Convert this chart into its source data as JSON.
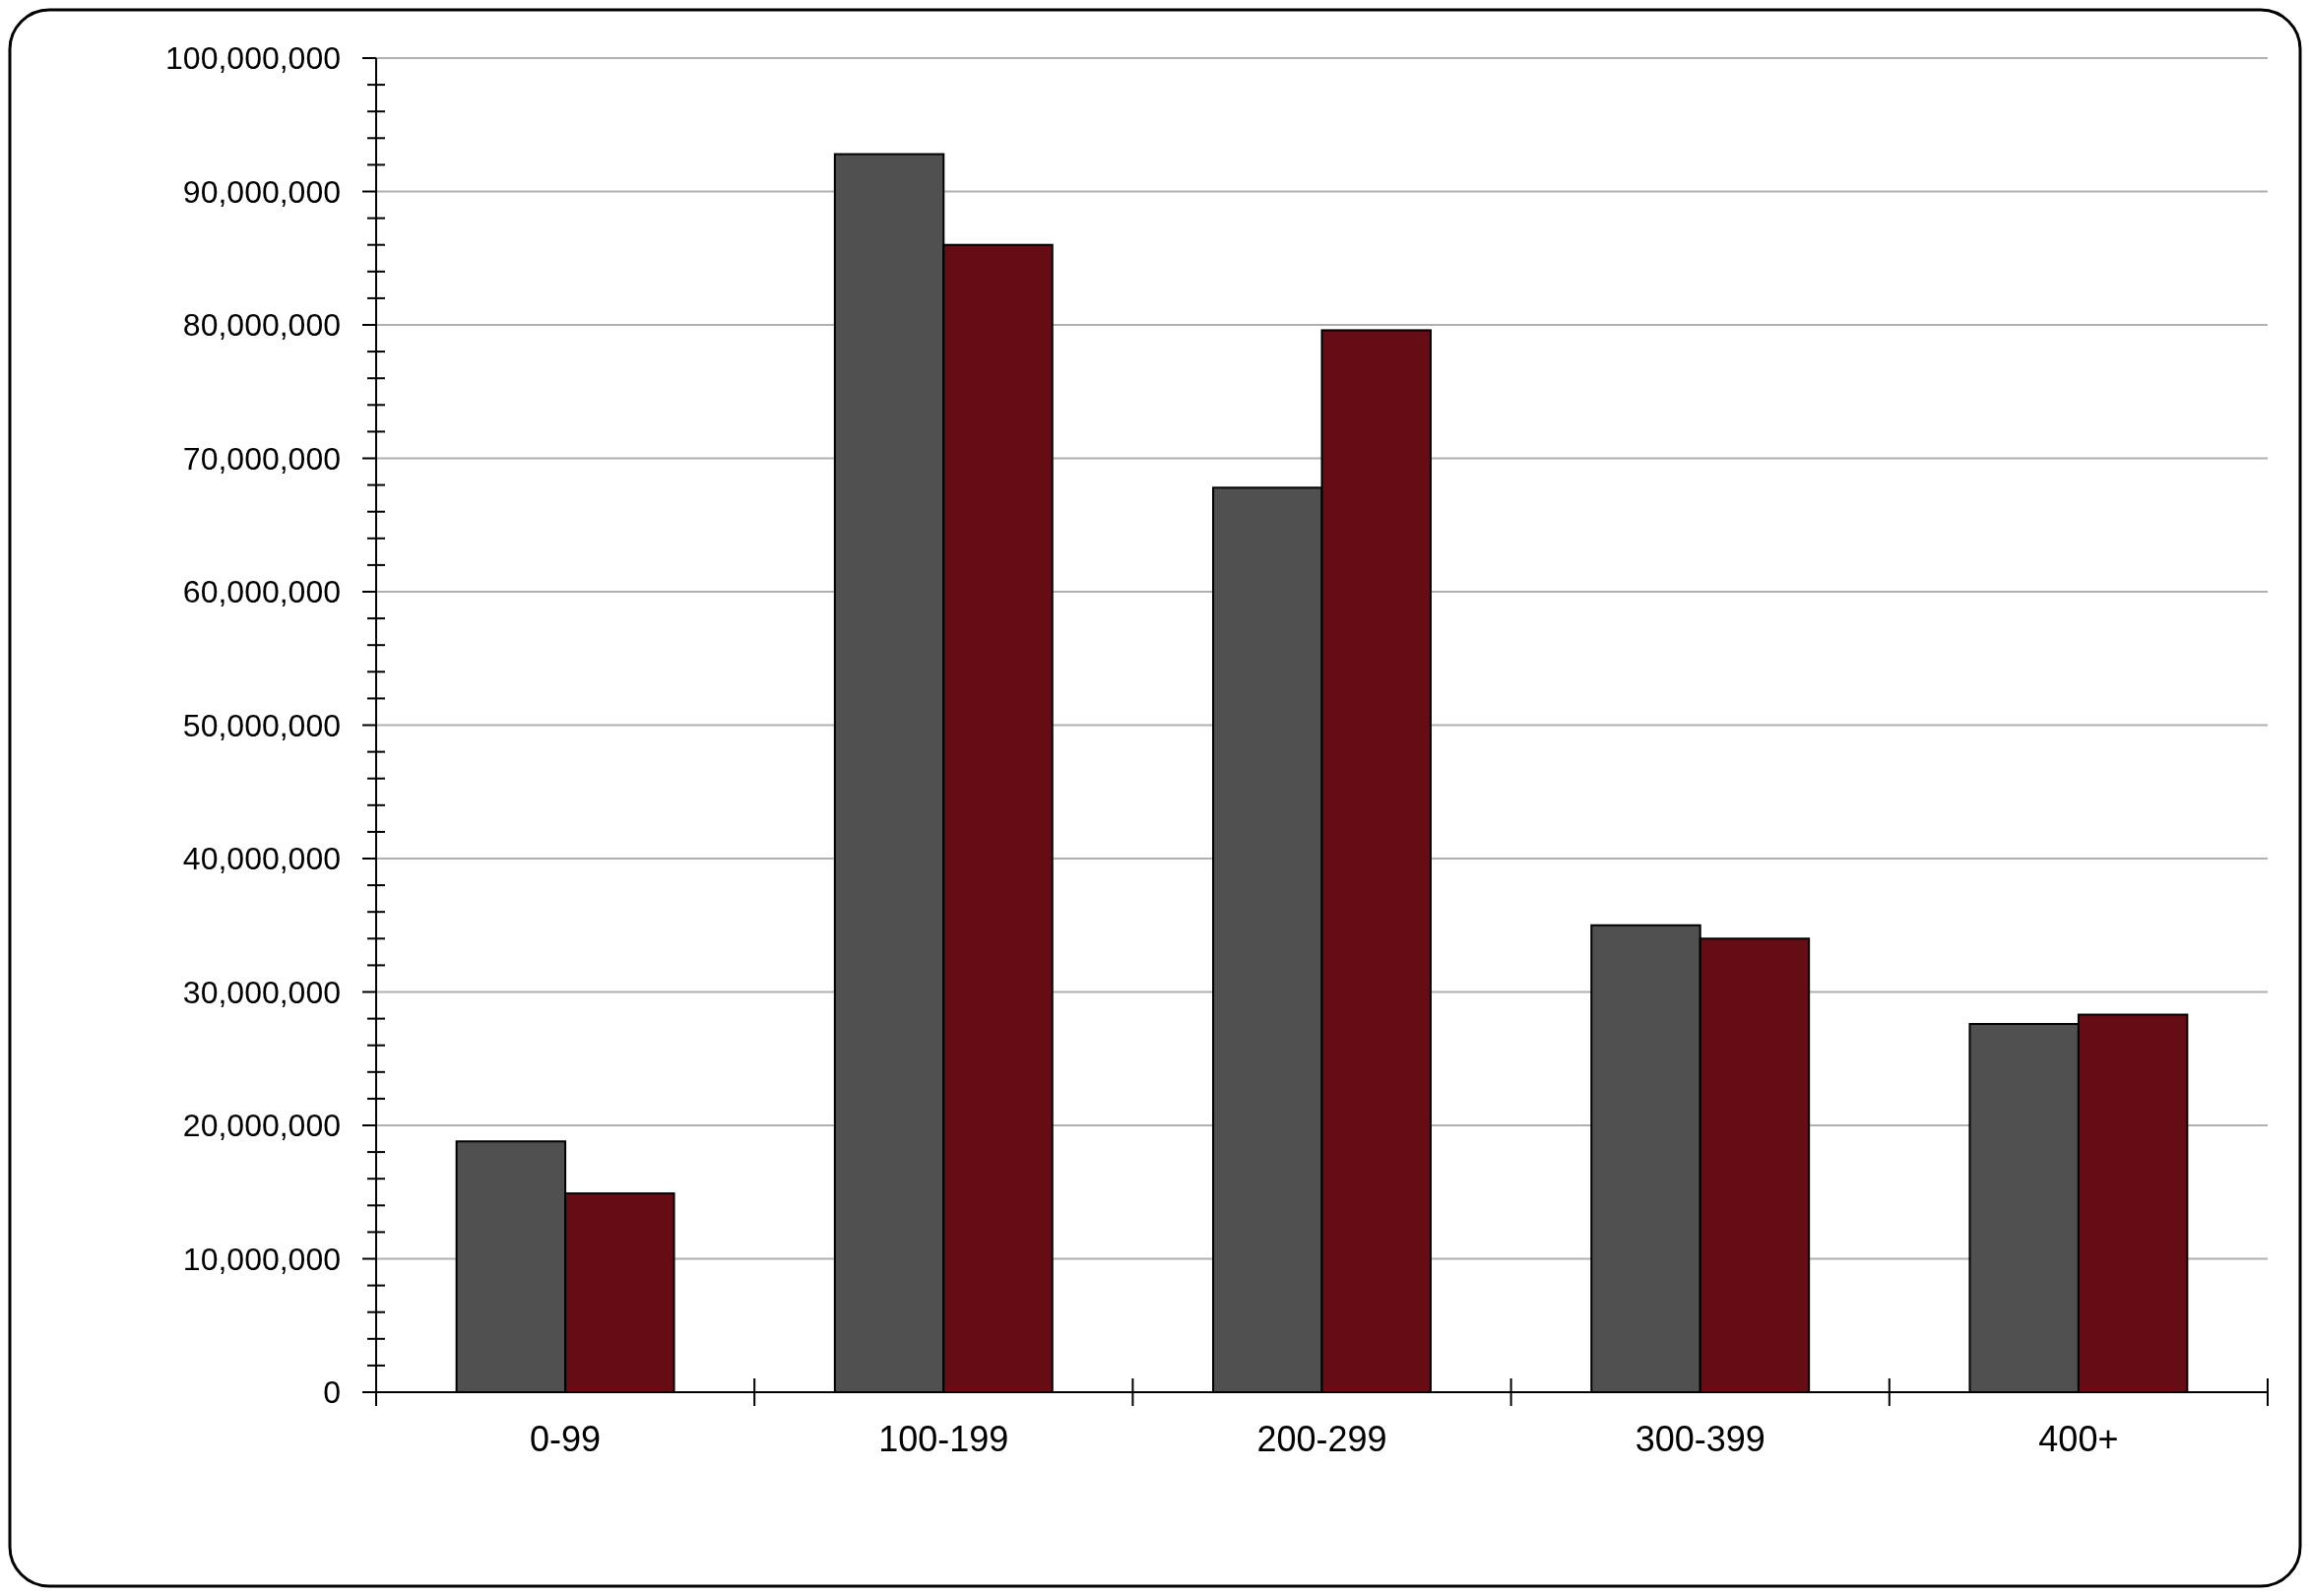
{
  "chart_data": {
    "type": "bar",
    "categories": [
      "0-99",
      "100-199",
      "200-299",
      "300-399",
      "400+"
    ],
    "series": [
      {
        "color": "#505050",
        "values": [
          18800000.0,
          92800000.0,
          67800000.0,
          35000000.0,
          27600000.0
        ]
      },
      {
        "color": "#650c15",
        "values": [
          14900000.0,
          86000000.0,
          79600000.0,
          34000000.0,
          28300000.0
        ]
      }
    ],
    "ylim": [
      0,
      100000000
    ],
    "yticks": [
      {
        "value": 0,
        "label": "0"
      },
      {
        "value": 10000000,
        "label": "10,000,000"
      },
      {
        "value": 20000000,
        "label": "20,000,000"
      },
      {
        "value": 30000000,
        "label": "30,000,000"
      },
      {
        "value": 40000000,
        "label": "40,000,000"
      },
      {
        "value": 50000000,
        "label": "50,000,000"
      },
      {
        "value": 60000000,
        "label": "60,000,000"
      },
      {
        "value": 70000000,
        "label": "70,000,000"
      },
      {
        "value": 80000000,
        "label": "80,000,000"
      },
      {
        "value": 90000000,
        "label": "90,000,000"
      },
      {
        "value": 100000000,
        "label": "100,000,000"
      }
    ],
    "grid": "y"
  }
}
